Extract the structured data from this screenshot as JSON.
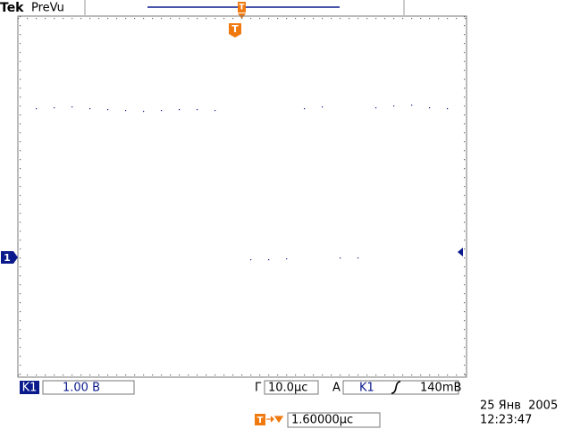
{
  "header": {
    "brand": "Tek",
    "mode": "PreVu",
    "trigger_marker": "T",
    "waveform_trigger_marker": "T"
  },
  "channel_marker": "1",
  "status": {
    "channel": "K1",
    "volts_per_div": "1.00 В",
    "timebase_label": "Г",
    "time_per_div": "10.0μс",
    "trigger_mode": "A",
    "trigger_source": "K1",
    "trigger_level": "140mВ",
    "date": "25 Янв  2005",
    "time": "12:23:47",
    "delay_marker": "T",
    "delay": "1.60000μс"
  }
}
